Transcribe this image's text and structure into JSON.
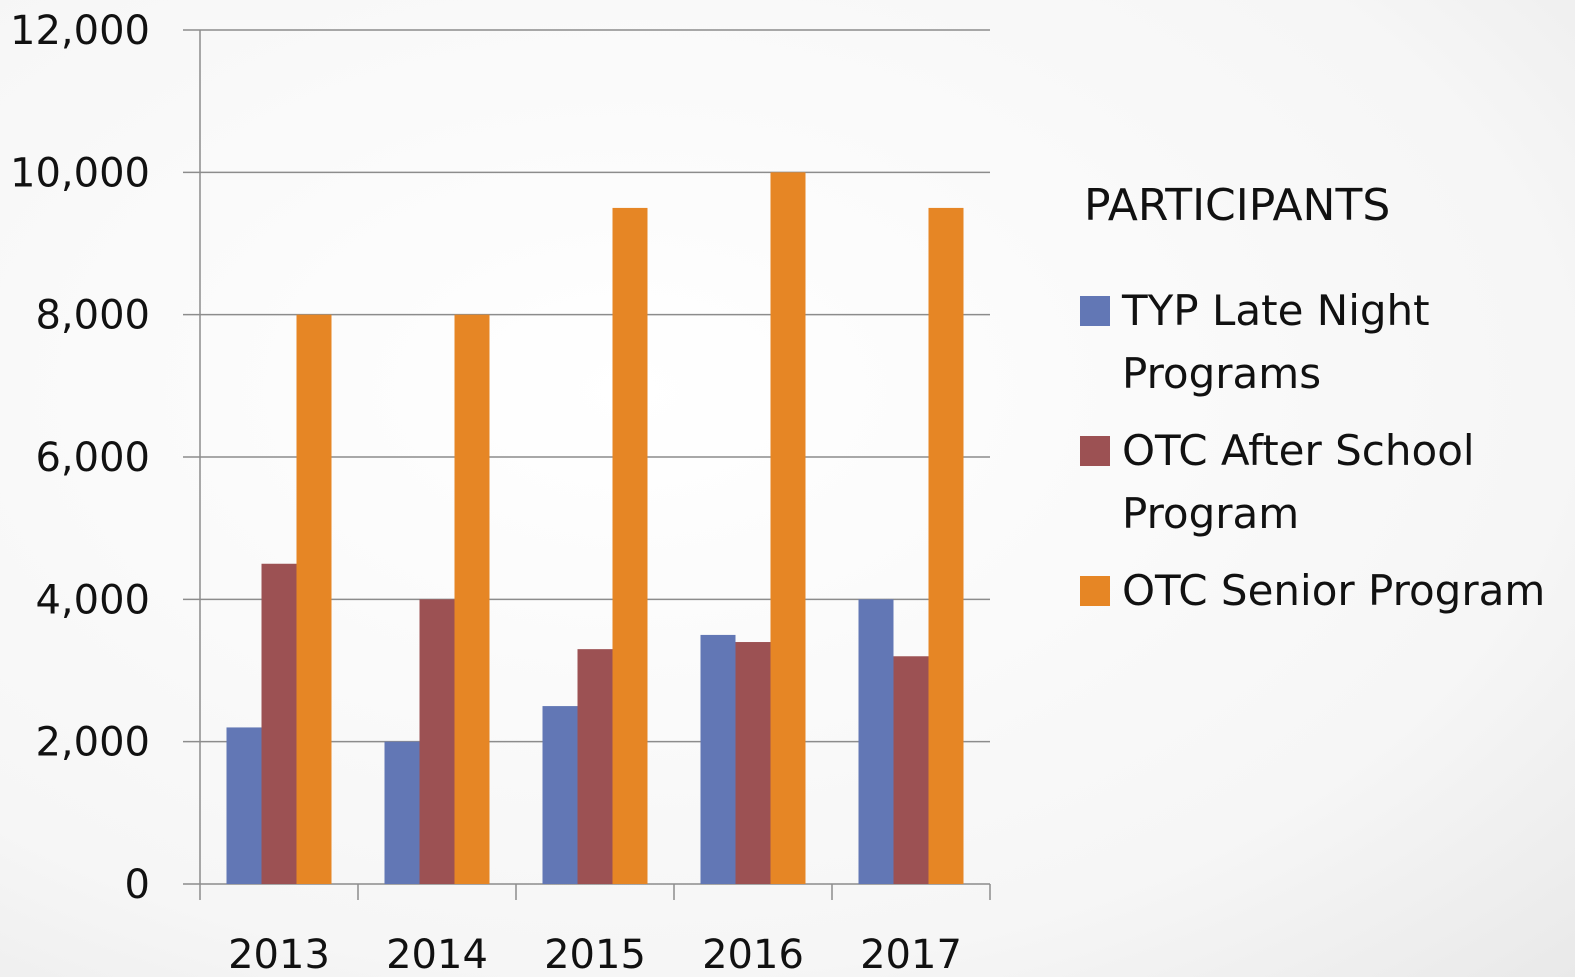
{
  "chart_data": {
    "type": "bar",
    "legend_title": "PARTICIPANTS",
    "categories": [
      "2013",
      "2014",
      "2015",
      "2016",
      "2017"
    ],
    "series": [
      {
        "name": "TYP Late Night Programs",
        "color": "#6277b5",
        "values": [
          2200,
          2000,
          2500,
          3500,
          4000
        ]
      },
      {
        "name": "OTC After School Program",
        "color": "#9c5153",
        "values": [
          4500,
          4000,
          3300,
          3400,
          3200
        ]
      },
      {
        "name": "OTC Senior Program",
        "color": "#e68625",
        "values": [
          8000,
          8000,
          9500,
          10000,
          9500
        ]
      }
    ],
    "ylim": [
      0,
      12000
    ],
    "yticks": [
      0,
      {
        "value": 2000,
        "label": "2,000"
      },
      {
        "value": 4000,
        "label": "4,000"
      },
      {
        "value": 6000,
        "label": "6,000"
      },
      {
        "value": 8000,
        "label": "8,000"
      },
      {
        "value": 10000,
        "label": "10,000"
      },
      {
        "value": 12000,
        "label": "12,000"
      }
    ],
    "grid": true
  }
}
